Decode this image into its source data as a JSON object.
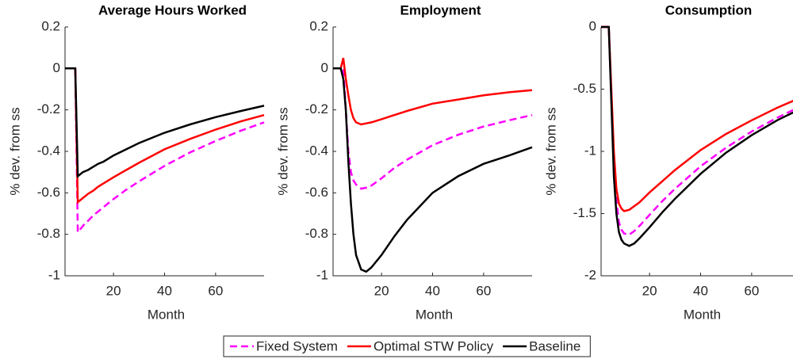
{
  "chart_data": [
    {
      "type": "line",
      "title": "Average Hours Worked",
      "xlabel": "Month",
      "ylabel": "% dev. from ss",
      "x": [
        1,
        2,
        3,
        4,
        5,
        6,
        7,
        8,
        9,
        10,
        12,
        14,
        16,
        20,
        25,
        30,
        40,
        50,
        60,
        70,
        79
      ],
      "xlim": [
        1,
        79
      ],
      "xticks": [
        20,
        40,
        60
      ],
      "ylim": [
        -1,
        0.2
      ],
      "yticks": [
        0.2,
        0,
        -0.2,
        -0.4,
        -0.6,
        -0.8,
        -1
      ],
      "legend": "bottom",
      "series": [
        {
          "name": "Fixed System",
          "color": "#ff00ff",
          "dash": true,
          "values": [
            0,
            0,
            0,
            0,
            0,
            -0.79,
            -0.775,
            -0.76,
            -0.745,
            -0.735,
            -0.71,
            -0.69,
            -0.67,
            -0.63,
            -0.585,
            -0.545,
            -0.47,
            -0.405,
            -0.35,
            -0.3,
            -0.26
          ]
        },
        {
          "name": "Optimal STW Policy",
          "color": "#ff0000",
          "dash": false,
          "values": [
            0,
            0,
            0,
            0,
            0,
            -0.645,
            -0.635,
            -0.625,
            -0.615,
            -0.605,
            -0.59,
            -0.57,
            -0.555,
            -0.525,
            -0.49,
            -0.455,
            -0.39,
            -0.34,
            -0.295,
            -0.255,
            -0.225
          ]
        },
        {
          "name": "Baseline",
          "color": "#000000",
          "dash": false,
          "values": [
            0,
            0,
            0,
            0,
            0,
            -0.52,
            -0.51,
            -0.5,
            -0.495,
            -0.49,
            -0.475,
            -0.46,
            -0.45,
            -0.42,
            -0.39,
            -0.36,
            -0.31,
            -0.27,
            -0.235,
            -0.205,
            -0.18
          ]
        }
      ]
    },
    {
      "type": "line",
      "title": "Employment",
      "xlabel": "Month",
      "ylabel": "% dev. from ss",
      "x": [
        1,
        2,
        3,
        4,
        5,
        6,
        7,
        8,
        9,
        10,
        12,
        14,
        16,
        20,
        25,
        30,
        40,
        50,
        60,
        70,
        79
      ],
      "xlim": [
        1,
        79
      ],
      "xticks": [
        20,
        40,
        60
      ],
      "ylim": [
        -1,
        0.2
      ],
      "yticks": [
        0.2,
        0,
        -0.2,
        -0.4,
        -0.6,
        -0.8,
        -1
      ],
      "series": [
        {
          "color": "#ff00ff",
          "dash": true,
          "values": [
            0,
            0,
            0,
            0,
            0,
            -0.2,
            -0.4,
            -0.5,
            -0.54,
            -0.56,
            -0.58,
            -0.575,
            -0.565,
            -0.53,
            -0.48,
            -0.44,
            -0.37,
            -0.32,
            -0.28,
            -0.25,
            -0.225
          ]
        },
        {
          "color": "#ff0000",
          "dash": false,
          "values": [
            0,
            0,
            0,
            0,
            0.05,
            -0.05,
            -0.13,
            -0.2,
            -0.24,
            -0.26,
            -0.27,
            -0.265,
            -0.26,
            -0.245,
            -0.225,
            -0.205,
            -0.17,
            -0.15,
            -0.13,
            -0.115,
            -0.105
          ]
        },
        {
          "color": "#000000",
          "dash": false,
          "values": [
            0,
            0,
            0,
            0,
            -0.05,
            -0.2,
            -0.45,
            -0.65,
            -0.8,
            -0.9,
            -0.97,
            -0.98,
            -0.96,
            -0.9,
            -0.81,
            -0.73,
            -0.6,
            -0.52,
            -0.46,
            -0.42,
            -0.38
          ]
        }
      ]
    },
    {
      "type": "line",
      "title": "Consumption",
      "xlabel": "Month",
      "ylabel": "% dev. from ss",
      "x": [
        1,
        2,
        3,
        4,
        5,
        6,
        7,
        8,
        9,
        10,
        12,
        14,
        16,
        20,
        25,
        30,
        40,
        50,
        60,
        70,
        79
      ],
      "xlim": [
        1,
        79
      ],
      "xticks": [
        20,
        40,
        60
      ],
      "ylim": [
        -2,
        0
      ],
      "yticks": [
        0,
        -0.5,
        -1,
        -1.5,
        -2
      ],
      "series": [
        {
          "color": "#ff00ff",
          "dash": true,
          "values": [
            0,
            0,
            0,
            0,
            -0.55,
            -1.1,
            -1.4,
            -1.57,
            -1.63,
            -1.66,
            -1.67,
            -1.64,
            -1.6,
            -1.51,
            -1.4,
            -1.3,
            -1.12,
            -0.97,
            -0.84,
            -0.73,
            -0.64
          ]
        },
        {
          "color": "#ff0000",
          "dash": false,
          "values": [
            0,
            0,
            0,
            0,
            -0.5,
            -1.0,
            -1.3,
            -1.42,
            -1.46,
            -1.48,
            -1.47,
            -1.44,
            -1.41,
            -1.33,
            -1.24,
            -1.15,
            -0.99,
            -0.86,
            -0.75,
            -0.65,
            -0.57
          ]
        },
        {
          "color": "#000000",
          "dash": false,
          "values": [
            0,
            0,
            0,
            0,
            -0.6,
            -1.2,
            -1.5,
            -1.65,
            -1.71,
            -1.74,
            -1.76,
            -1.74,
            -1.7,
            -1.61,
            -1.49,
            -1.38,
            -1.18,
            -1.01,
            -0.87,
            -0.75,
            -0.66
          ]
        }
      ]
    }
  ]
}
